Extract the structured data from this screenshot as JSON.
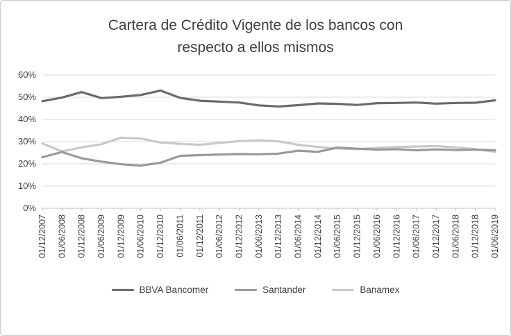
{
  "window": {
    "background": "#ffffff",
    "border_color": "#c9c9c9"
  },
  "chart_data": {
    "type": "line",
    "title": "Cartera de Crédito Vigente de los bancos con respecto a ellos mismos",
    "xlabel": "",
    "ylabel": "",
    "ylim": [
      0,
      60
    ],
    "ytick_step": 10,
    "ytick_labels": [
      "0%",
      "10%",
      "20%",
      "30%",
      "40%",
      "50%",
      "60%"
    ],
    "grid": true,
    "grid_color": "#d9d9d9",
    "axis_color": "#bfbfbf",
    "text_color": "#404040",
    "legend_position": "bottom",
    "x_tick_rotation": -90,
    "categories": [
      "01/12/2007",
      "01/06/2008",
      "01/12/2008",
      "01/06/2009",
      "01/12/2009",
      "01/06/2010",
      "01/12/2010",
      "01/06/2011",
      "01/12/2011",
      "01/06/2012",
      "01/12/2012",
      "01/06/2013",
      "01/12/2013",
      "01/06/2014",
      "01/12/2014",
      "01/06/2015",
      "01/12/2015",
      "01/06/2016",
      "01/12/2016",
      "01/06/2017",
      "01/12/2017",
      "01/06/2018",
      "01/12/2018",
      "01/06/2019"
    ],
    "series": [
      {
        "name": "BBVA Bancomer",
        "color": "#6b6b6b",
        "values": [
          48.2,
          49.8,
          52.3,
          49.6,
          50.2,
          51.0,
          53.0,
          49.7,
          48.4,
          48.0,
          47.6,
          46.3,
          45.8,
          46.4,
          47.2,
          47.0,
          46.5,
          47.3,
          47.4,
          47.6,
          47.1,
          47.4,
          47.5,
          48.6
        ]
      },
      {
        "name": "Santander",
        "color": "#9a9a9a",
        "values": [
          23.0,
          25.3,
          22.5,
          21.0,
          19.8,
          19.2,
          20.5,
          23.6,
          23.9,
          24.2,
          24.4,
          24.3,
          24.6,
          25.9,
          25.4,
          27.3,
          26.8,
          26.4,
          26.6,
          26.1,
          26.5,
          26.2,
          26.4,
          26.1
        ]
      },
      {
        "name": "Banamex",
        "color": "#c9c9c9",
        "values": [
          29.2,
          25.6,
          27.4,
          28.8,
          31.8,
          31.4,
          29.6,
          29.0,
          28.6,
          29.4,
          30.2,
          30.6,
          30.1,
          28.6,
          27.6,
          26.9,
          26.6,
          27.2,
          27.6,
          27.8,
          28.0,
          27.4,
          26.6,
          25.4
        ]
      }
    ]
  }
}
